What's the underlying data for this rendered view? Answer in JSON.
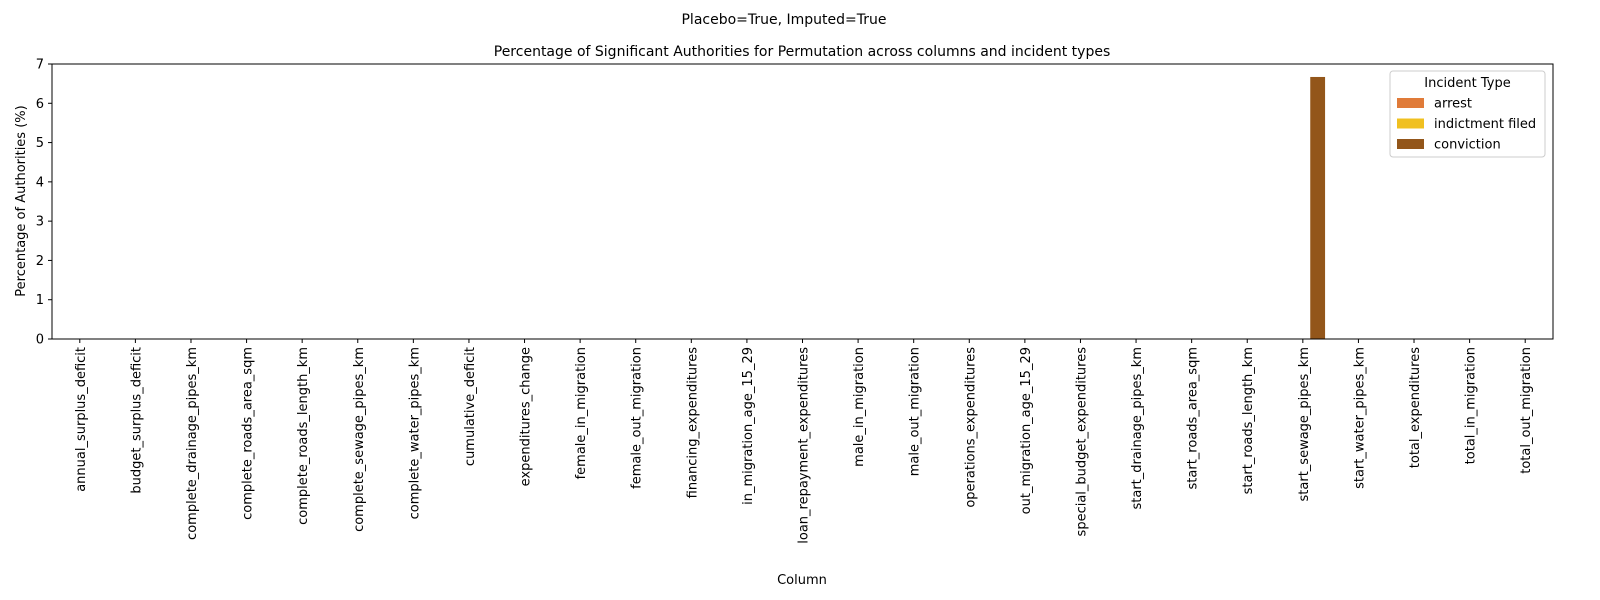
{
  "suptitle": "Placebo=True, Imputed=True",
  "chart_data": {
    "type": "bar",
    "title": "Percentage of Significant Authorities for Permutation across columns and incident types",
    "xlabel": "Column",
    "ylabel": "Percentage of Authorities (%)",
    "ylim": [
      0,
      7
    ],
    "yticks": [
      0,
      1,
      2,
      3,
      4,
      5,
      6,
      7
    ],
    "grid": false,
    "categories": [
      "annual_surplus_deficit",
      "budget_surplus_deficit",
      "complete_drainage_pipes_km",
      "complete_roads_area_sqm",
      "complete_roads_length_km",
      "complete_sewage_pipes_km",
      "complete_water_pipes_km",
      "cumulative_deficit",
      "expenditures_change",
      "female_in_migration",
      "female_out_migration",
      "financing_expenditures",
      "in_migration_age_15_29",
      "loan_repayment_expenditures",
      "male_in_migration",
      "male_out_migration",
      "operations_expenditures",
      "out_migration_age_15_29",
      "special_budget_expenditures",
      "start_drainage_pipes_km",
      "start_roads_area_sqm",
      "start_roads_length_km",
      "start_sewage_pipes_km",
      "start_water_pipes_km",
      "total_expenditures",
      "total_in_migration",
      "total_out_migration"
    ],
    "legend": {
      "title": "Incident Type",
      "placement": "upper right"
    },
    "series": [
      {
        "name": "arrest",
        "color": "#e07b39",
        "values": [
          0,
          0,
          0,
          0,
          0,
          0,
          0,
          0,
          0,
          0,
          0,
          0,
          0,
          0,
          0,
          0,
          0,
          0,
          0,
          0,
          0,
          0,
          0,
          0,
          0,
          0,
          0
        ]
      },
      {
        "name": "indictment filed",
        "color": "#f0c020",
        "values": [
          0,
          0,
          0,
          0,
          0,
          0,
          0,
          0,
          0,
          0,
          0,
          0,
          0,
          0,
          0,
          0,
          0,
          0,
          0,
          0,
          0,
          0,
          0,
          0,
          0,
          0,
          0
        ]
      },
      {
        "name": "conviction",
        "color": "#93561a",
        "values": [
          0,
          0,
          0,
          0,
          0,
          0,
          0,
          0,
          0,
          0,
          0,
          0,
          0,
          0,
          0,
          0,
          0,
          0,
          0,
          0,
          0,
          0,
          6.67,
          0,
          0,
          0,
          0
        ]
      }
    ]
  }
}
